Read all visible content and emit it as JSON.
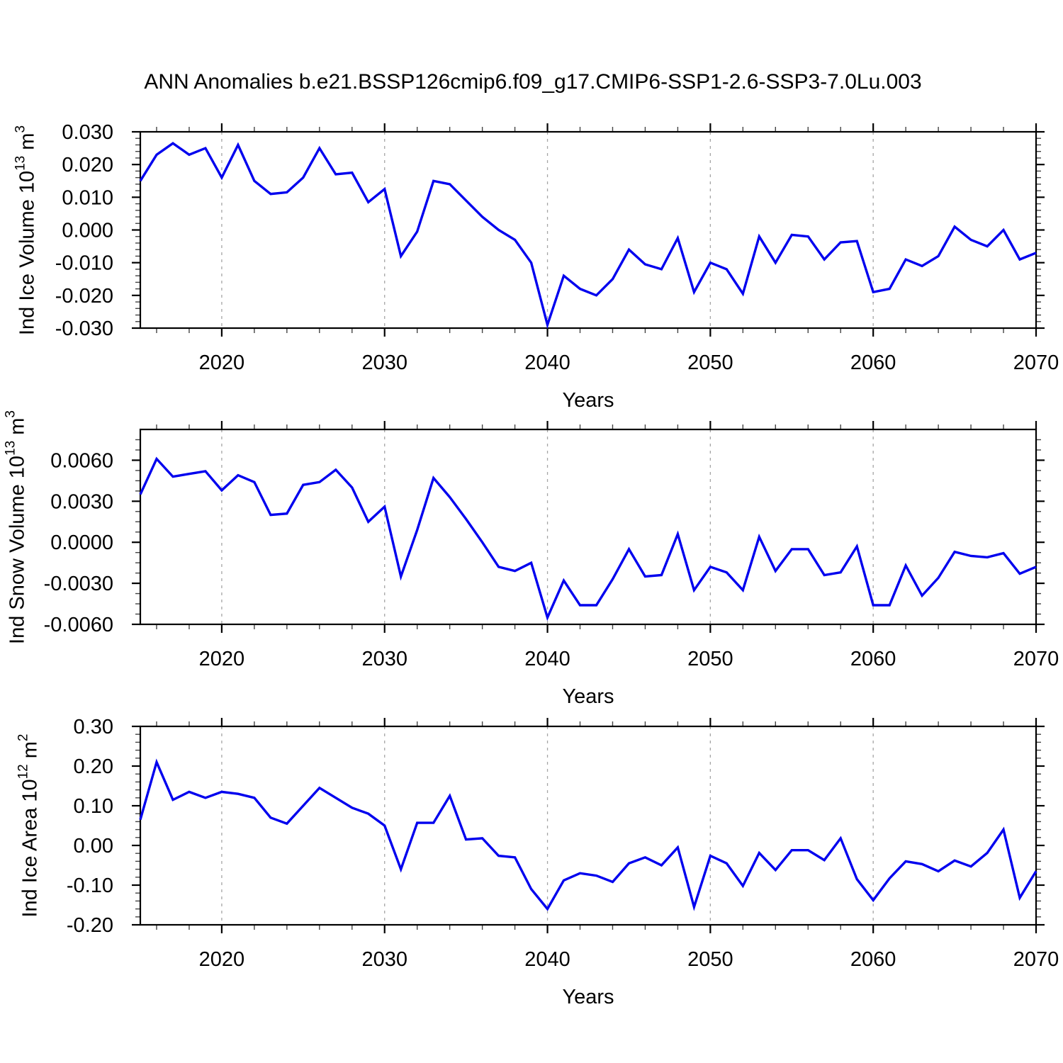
{
  "page_title": "ANN Anomalies b.e21.BSSP126cmip6.f09_g17.CMIP6-SSP1-2.6-SSP3-7.0Lu.003",
  "styles": {
    "line_color": "#0000EE",
    "grid_color": "#A5A5A5",
    "axis_color": "#000000",
    "minor_tick_color": "#444444",
    "background": "#FFFFFF"
  },
  "chart_data": [
    {
      "type": "line",
      "name": "ind-ice-volume",
      "ylabel_parts": {
        "pre": "Ind Ice Volume 10",
        "sup1": "13",
        "mid": " m",
        "sup2": "3"
      },
      "xlabel": "Years",
      "legend": "none",
      "grid": "vertical-dashed",
      "years": [
        2015,
        2016,
        2017,
        2018,
        2019,
        2020,
        2021,
        2022,
        2023,
        2024,
        2025,
        2026,
        2027,
        2028,
        2029,
        2030,
        2031,
        2032,
        2033,
        2034,
        2035,
        2036,
        2037,
        2038,
        2039,
        2040,
        2041,
        2042,
        2043,
        2044,
        2045,
        2046,
        2047,
        2048,
        2049,
        2050,
        2051,
        2052,
        2053,
        2054,
        2055,
        2056,
        2057,
        2058,
        2059,
        2060,
        2061,
        2062,
        2063,
        2064,
        2065,
        2066,
        2067,
        2068,
        2069,
        2070
      ],
      "values": [
        0.015,
        0.023,
        0.0265,
        0.023,
        0.025,
        0.016,
        0.026,
        0.015,
        0.011,
        0.0115,
        0.016,
        0.025,
        0.017,
        0.0175,
        0.0085,
        0.0125,
        -0.008,
        -0.0005,
        0.015,
        0.014,
        0.009,
        0.004,
        0.0,
        -0.003,
        -0.01,
        -0.029,
        -0.014,
        -0.018,
        -0.02,
        -0.015,
        -0.006,
        -0.0105,
        -0.012,
        -0.0025,
        -0.019,
        -0.01,
        -0.012,
        -0.0195,
        -0.002,
        -0.01,
        -0.0015,
        -0.002,
        -0.009,
        -0.0038,
        -0.0034,
        -0.019,
        -0.018,
        -0.009,
        -0.011,
        -0.008,
        0.001,
        -0.003,
        -0.005,
        0.0,
        -0.009,
        -0.007
      ],
      "ylim": [
        -0.03,
        0.03
      ],
      "y_tick_values": [
        0.03,
        0.02,
        0.01,
        0.0,
        -0.01,
        -0.02,
        -0.03
      ],
      "y_tick_labels": [
        "0.030",
        "0.020",
        "0.010",
        "0.000",
        "-0.010",
        "-0.020",
        "-0.030"
      ],
      "y_minor_step": 0.002,
      "xlim": [
        2015,
        2070
      ],
      "x_tick_values": [
        2020,
        2030,
        2040,
        2050,
        2060,
        2070
      ],
      "x_tick_labels": [
        "2020",
        "2030",
        "2040",
        "2050",
        "2060",
        "2070"
      ],
      "x_minor_step": 2,
      "grid_years": [
        2020,
        2030,
        2040,
        2050,
        2060
      ]
    },
    {
      "type": "line",
      "name": "ind-snow-volume",
      "ylabel_parts": {
        "pre": "Ind Snow Volume 10",
        "sup1": "13",
        "mid": " m",
        "sup2": "3"
      },
      "xlabel": "Years",
      "legend": "none",
      "grid": "vertical-dashed",
      "years": [
        2015,
        2016,
        2017,
        2018,
        2019,
        2020,
        2021,
        2022,
        2023,
        2024,
        2025,
        2026,
        2027,
        2028,
        2029,
        2030,
        2031,
        2032,
        2033,
        2034,
        2035,
        2036,
        2037,
        2038,
        2039,
        2040,
        2041,
        2042,
        2043,
        2044,
        2045,
        2046,
        2047,
        2048,
        2049,
        2050,
        2051,
        2052,
        2053,
        2054,
        2055,
        2056,
        2057,
        2058,
        2059,
        2060,
        2061,
        2062,
        2063,
        2064,
        2065,
        2066,
        2067,
        2068,
        2069,
        2070
      ],
      "values": [
        0.0035,
        0.0061,
        0.0048,
        0.005,
        0.0052,
        0.0038,
        0.0049,
        0.0044,
        0.002,
        0.0021,
        0.0042,
        0.0044,
        0.0053,
        0.004,
        0.0015,
        0.0026,
        -0.0025,
        0.0009,
        0.0047,
        0.0033,
        0.0017,
        0.0,
        -0.0018,
        -0.0021,
        -0.0015,
        -0.0055,
        -0.0028,
        -0.0046,
        -0.0046,
        -0.0027,
        -0.0005,
        -0.0025,
        -0.0024,
        0.0006,
        -0.0035,
        -0.0018,
        -0.0022,
        -0.0035,
        0.0004,
        -0.0021,
        -0.0005,
        -0.0005,
        -0.0024,
        -0.0022,
        -0.0003,
        -0.0046,
        -0.0046,
        -0.0017,
        -0.0039,
        -0.0026,
        -0.0007,
        -0.001,
        -0.0011,
        -0.0008,
        -0.0023,
        -0.0018
      ],
      "ylim": [
        -0.006,
        0.00825
      ],
      "y_tick_values": [
        0.006,
        0.003,
        0.0,
        -0.003,
        -0.006
      ],
      "y_tick_labels": [
        "0.0060",
        "0.0030",
        "0.0000",
        "-0.0030",
        "-0.0060"
      ],
      "y_minor_step": 0.00075,
      "xlim": [
        2015,
        2070
      ],
      "x_tick_values": [
        2020,
        2030,
        2040,
        2050,
        2060,
        2070
      ],
      "x_tick_labels": [
        "2020",
        "2030",
        "2040",
        "2050",
        "2060",
        "2070"
      ],
      "x_minor_step": 2,
      "grid_years": [
        2020,
        2030,
        2040,
        2050,
        2060
      ]
    },
    {
      "type": "line",
      "name": "ind-ice-area",
      "ylabel_parts": {
        "pre": "Ind Ice Area 10",
        "sup1": "12",
        "mid": " m",
        "sup2": "2"
      },
      "xlabel": "Years",
      "legend": "none",
      "grid": "vertical-dashed",
      "years": [
        2015,
        2016,
        2017,
        2018,
        2019,
        2020,
        2021,
        2022,
        2023,
        2024,
        2025,
        2026,
        2027,
        2028,
        2029,
        2030,
        2031,
        2032,
        2033,
        2034,
        2035,
        2036,
        2037,
        2038,
        2039,
        2040,
        2041,
        2042,
        2043,
        2044,
        2045,
        2046,
        2047,
        2048,
        2049,
        2050,
        2051,
        2052,
        2053,
        2054,
        2055,
        2056,
        2057,
        2058,
        2059,
        2060,
        2061,
        2062,
        2063,
        2064,
        2065,
        2066,
        2067,
        2068,
        2069,
        2070
      ],
      "values": [
        0.065,
        0.21,
        0.115,
        0.135,
        0.12,
        0.135,
        0.13,
        0.12,
        0.07,
        0.055,
        0.1,
        0.145,
        0.12,
        0.095,
        0.08,
        0.05,
        -0.06,
        0.057,
        0.057,
        0.125,
        0.015,
        0.018,
        -0.026,
        -0.03,
        -0.11,
        -0.16,
        -0.088,
        -0.07,
        -0.076,
        -0.092,
        -0.045,
        -0.03,
        -0.05,
        -0.005,
        -0.155,
        -0.026,
        -0.045,
        -0.102,
        -0.019,
        -0.062,
        -0.012,
        -0.012,
        -0.037,
        0.018,
        -0.085,
        -0.138,
        -0.083,
        -0.04,
        -0.047,
        -0.065,
        -0.038,
        -0.053,
        -0.019,
        0.04,
        -0.132,
        -0.065
      ],
      "ylim": [
        -0.2,
        0.3
      ],
      "y_tick_values": [
        0.3,
        0.2,
        0.1,
        0.0,
        -0.1,
        -0.2
      ],
      "y_tick_labels": [
        "0.30",
        "0.20",
        "0.10",
        "0.00",
        "-0.10",
        "-0.20"
      ],
      "y_minor_step": 0.02,
      "xlim": [
        2015,
        2070
      ],
      "x_tick_values": [
        2020,
        2030,
        2040,
        2050,
        2060,
        2070
      ],
      "x_tick_labels": [
        "2020",
        "2030",
        "2040",
        "2050",
        "2060",
        "2070"
      ],
      "x_minor_step": 2,
      "grid_years": [
        2020,
        2030,
        2040,
        2050,
        2060
      ]
    }
  ]
}
